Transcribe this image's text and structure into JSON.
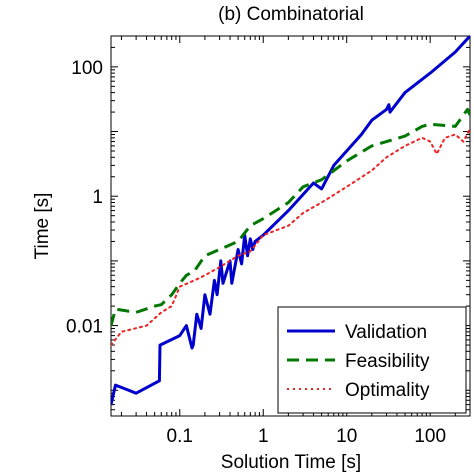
{
  "chart_data": {
    "type": "line",
    "title": "(b) Combinatorial",
    "xlabel": "Solution Time [s]",
    "ylabel": "Time [s]",
    "xscale": "log",
    "yscale": "log",
    "xlim": [
      0.015,
      300
    ],
    "ylim": [
      0.0004,
      300
    ],
    "xticks": [
      0.1,
      1,
      10,
      100
    ],
    "xtick_labels": [
      "0.1",
      "1",
      "10",
      "100"
    ],
    "yticks": [
      0.01,
      1,
      100
    ],
    "ytick_labels": [
      "0.01",
      "1",
      "100"
    ],
    "grid": false,
    "legend_position": "bottom-right",
    "series": [
      {
        "name": "Validation",
        "color": "#0000cc",
        "style": "solid",
        "points": [
          [
            0.015,
            0.0006
          ],
          [
            0.017,
            0.0012
          ],
          [
            0.03,
            0.0009
          ],
          [
            0.057,
            0.0014
          ],
          [
            0.058,
            0.005
          ],
          [
            0.1,
            0.007
          ],
          [
            0.12,
            0.01
          ],
          [
            0.14,
            0.0045
          ],
          [
            0.145,
            0.005
          ],
          [
            0.16,
            0.015
          ],
          [
            0.18,
            0.009
          ],
          [
            0.2,
            0.03
          ],
          [
            0.23,
            0.015
          ],
          [
            0.26,
            0.05
          ],
          [
            0.28,
            0.03
          ],
          [
            0.31,
            0.1
          ],
          [
            0.33,
            0.045
          ],
          [
            0.4,
            0.1
          ],
          [
            0.42,
            0.045
          ],
          [
            0.5,
            0.15
          ],
          [
            0.55,
            0.09
          ],
          [
            0.6,
            0.25
          ],
          [
            0.65,
            0.12
          ],
          [
            0.7,
            0.22
          ],
          [
            0.75,
            0.15
          ],
          [
            0.8,
            0.2
          ],
          [
            1,
            0.25
          ],
          [
            2,
            0.6
          ],
          [
            4,
            1.6
          ],
          [
            5,
            1.3
          ],
          [
            7,
            3
          ],
          [
            15,
            9
          ],
          [
            20,
            15
          ],
          [
            30,
            22
          ],
          [
            32,
            26
          ],
          [
            33,
            20
          ],
          [
            50,
            40
          ],
          [
            100,
            80
          ],
          [
            200,
            170
          ],
          [
            300,
            300
          ]
        ]
      },
      {
        "name": "Feasibility",
        "color": "#007700",
        "style": "dashed",
        "points": [
          [
            0.015,
            0.01
          ],
          [
            0.017,
            0.018
          ],
          [
            0.03,
            0.016
          ],
          [
            0.05,
            0.02
          ],
          [
            0.06,
            0.021
          ],
          [
            0.08,
            0.03
          ],
          [
            0.1,
            0.045
          ],
          [
            0.12,
            0.06
          ],
          [
            0.15,
            0.07
          ],
          [
            0.2,
            0.12
          ],
          [
            0.3,
            0.15
          ],
          [
            0.5,
            0.2
          ],
          [
            0.7,
            0.35
          ],
          [
            1,
            0.45
          ],
          [
            2,
            0.8
          ],
          [
            3,
            1.4
          ],
          [
            5,
            1.8
          ],
          [
            10,
            3.5
          ],
          [
            20,
            6
          ],
          [
            30,
            7
          ],
          [
            50,
            8.5
          ],
          [
            80,
            12
          ],
          [
            100,
            13
          ],
          [
            200,
            12
          ],
          [
            280,
            22
          ],
          [
            300,
            18
          ]
        ]
      },
      {
        "name": "Optimality",
        "color": "#ee2222",
        "style": "dotted",
        "points": [
          [
            0.015,
            0.005
          ],
          [
            0.02,
            0.008
          ],
          [
            0.04,
            0.01
          ],
          [
            0.06,
            0.016
          ],
          [
            0.08,
            0.02
          ],
          [
            0.1,
            0.04
          ],
          [
            0.15,
            0.05
          ],
          [
            0.2,
            0.06
          ],
          [
            0.3,
            0.08
          ],
          [
            0.5,
            0.12
          ],
          [
            0.7,
            0.14
          ],
          [
            1,
            0.25
          ],
          [
            2,
            0.35
          ],
          [
            3,
            0.55
          ],
          [
            5,
            0.8
          ],
          [
            10,
            1.4
          ],
          [
            20,
            2.5
          ],
          [
            30,
            4
          ],
          [
            50,
            6
          ],
          [
            80,
            8
          ],
          [
            100,
            7
          ],
          [
            120,
            4.5
          ],
          [
            150,
            8
          ],
          [
            200,
            9
          ],
          [
            250,
            7
          ],
          [
            300,
            11
          ]
        ]
      }
    ]
  }
}
